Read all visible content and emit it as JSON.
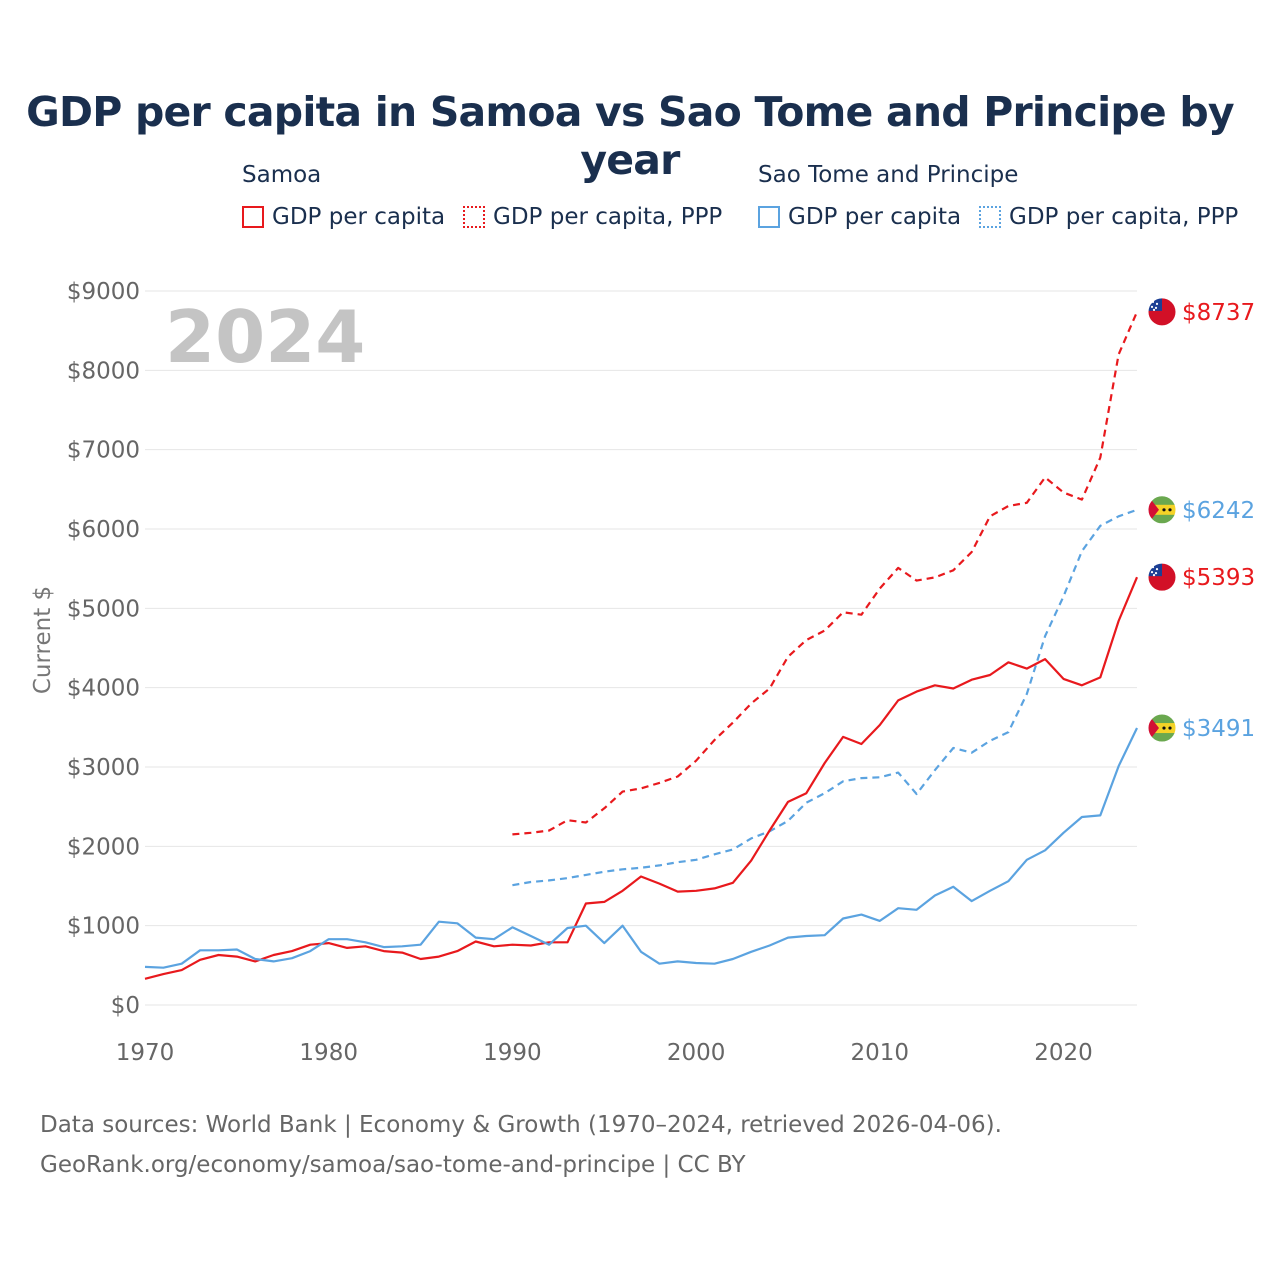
{
  "title": "GDP per capita in Samoa vs Sao Tome and Principe by year",
  "year_watermark": "2024",
  "legend": {
    "groups": [
      {
        "country": "Samoa",
        "color": "#e8191d",
        "items": [
          {
            "label": "GDP per capita",
            "style": "solid"
          },
          {
            "label": "GDP per capita, PPP",
            "style": "dotted"
          }
        ]
      },
      {
        "country": "Sao Tome and Principe",
        "color": "#5ba3e0",
        "items": [
          {
            "label": "GDP per capita",
            "style": "solid"
          },
          {
            "label": "GDP per capita, PPP",
            "style": "dotted"
          }
        ]
      }
    ]
  },
  "footer": {
    "line1": "Data sources: World Bank | Economy & Growth (1970–2024, retrieved 2026-04-06).",
    "line2": "GeoRank.org/economy/samoa/sao-tome-and-principe | CC BY"
  },
  "chart_data": {
    "type": "line",
    "ylabel": "Current $",
    "xlabel": "",
    "xlim": [
      1970,
      2024
    ],
    "ylim": [
      0,
      9000
    ],
    "xticks": [
      1970,
      1980,
      1990,
      2000,
      2010,
      2020
    ],
    "yticks": [
      0,
      1000,
      2000,
      3000,
      4000,
      5000,
      6000,
      7000,
      8000,
      9000
    ],
    "ytick_labels": [
      "$0",
      "$1000",
      "$2000",
      "$3000",
      "$4000",
      "$5000",
      "$6000",
      "$7000",
      "$8000",
      "$9000"
    ],
    "grid": true,
    "series": [
      {
        "name": "Samoa GDP per capita, PPP",
        "country": "Samoa",
        "color": "#e8191d",
        "dashed": true,
        "end_label": "$8737",
        "flag": "samoa",
        "x": [
          1990,
          1991,
          1992,
          1993,
          1994,
          1995,
          1996,
          1997,
          1998,
          1999,
          2000,
          2001,
          2002,
          2003,
          2004,
          2005,
          2006,
          2007,
          2008,
          2009,
          2010,
          2011,
          2012,
          2013,
          2014,
          2015,
          2016,
          2017,
          2018,
          2019,
          2020,
          2021,
          2022,
          2023,
          2024
        ],
        "values": [
          2150,
          2170,
          2200,
          2330,
          2300,
          2480,
          2690,
          2730,
          2800,
          2880,
          3080,
          3340,
          3560,
          3800,
          3990,
          4390,
          4600,
          4720,
          4950,
          4920,
          5250,
          5510,
          5350,
          5390,
          5480,
          5710,
          6160,
          6290,
          6330,
          6650,
          6460,
          6370,
          6900,
          8200,
          8737
        ]
      },
      {
        "name": "Sao Tome and Principe GDP per capita, PPP",
        "country": "Sao Tome and Principe",
        "color": "#5ba3e0",
        "dashed": true,
        "end_label": "$6242",
        "flag": "stp",
        "x": [
          1990,
          1991,
          1992,
          1993,
          1994,
          1995,
          1996,
          1997,
          1998,
          1999,
          2000,
          2001,
          2002,
          2003,
          2004,
          2005,
          2006,
          2007,
          2008,
          2009,
          2010,
          2011,
          2012,
          2013,
          2014,
          2015,
          2016,
          2017,
          2018,
          2019,
          2020,
          2021,
          2022,
          2023,
          2024
        ],
        "values": [
          1510,
          1550,
          1570,
          1600,
          1640,
          1680,
          1710,
          1730,
          1760,
          1800,
          1830,
          1900,
          1960,
          2100,
          2190,
          2320,
          2550,
          2670,
          2820,
          2860,
          2870,
          2930,
          2660,
          2960,
          3240,
          3180,
          3330,
          3440,
          3920,
          4650,
          5150,
          5720,
          6040,
          6160,
          6242
        ]
      },
      {
        "name": "Samoa GDP per capita",
        "country": "Samoa",
        "color": "#e8191d",
        "dashed": false,
        "end_label": "$5393",
        "flag": "samoa",
        "x": [
          1970,
          1971,
          1972,
          1973,
          1974,
          1975,
          1976,
          1977,
          1978,
          1979,
          1980,
          1981,
          1982,
          1983,
          1984,
          1985,
          1986,
          1987,
          1988,
          1989,
          1990,
          1991,
          1992,
          1993,
          1994,
          1995,
          1996,
          1997,
          1998,
          1999,
          2000,
          2001,
          2002,
          2003,
          2004,
          2005,
          2006,
          2007,
          2008,
          2009,
          2010,
          2011,
          2012,
          2013,
          2014,
          2015,
          2016,
          2017,
          2018,
          2019,
          2020,
          2021,
          2022,
          2023,
          2024
        ],
        "values": [
          330,
          390,
          440,
          570,
          630,
          610,
          550,
          630,
          680,
          760,
          780,
          720,
          740,
          680,
          660,
          580,
          610,
          680,
          800,
          740,
          760,
          750,
          790,
          790,
          1280,
          1300,
          1440,
          1620,
          1530,
          1430,
          1440,
          1470,
          1540,
          1820,
          2200,
          2560,
          2670,
          3050,
          3380,
          3290,
          3530,
          3840,
          3950,
          4030,
          3990,
          4100,
          4160,
          4320,
          4240,
          4360,
          4110,
          4030,
          4130,
          4840,
          5393
        ]
      },
      {
        "name": "Sao Tome and Principe GDP per capita",
        "country": "Sao Tome and Principe",
        "color": "#5ba3e0",
        "dashed": false,
        "end_label": "$3491",
        "flag": "stp",
        "x": [
          1970,
          1971,
          1972,
          1973,
          1974,
          1975,
          1976,
          1977,
          1978,
          1979,
          1980,
          1981,
          1982,
          1983,
          1984,
          1985,
          1986,
          1987,
          1988,
          1989,
          1990,
          1991,
          1992,
          1993,
          1994,
          1995,
          1996,
          1997,
          1998,
          1999,
          2000,
          2001,
          2002,
          2003,
          2004,
          2005,
          2006,
          2007,
          2008,
          2009,
          2010,
          2011,
          2012,
          2013,
          2014,
          2015,
          2016,
          2017,
          2018,
          2019,
          2020,
          2021,
          2022,
          2023,
          2024
        ],
        "values": [
          480,
          470,
          520,
          690,
          690,
          700,
          580,
          550,
          590,
          680,
          830,
          830,
          790,
          730,
          740,
          760,
          1050,
          1030,
          850,
          830,
          980,
          870,
          760,
          970,
          1000,
          780,
          1000,
          670,
          520,
          550,
          530,
          520,
          580,
          670,
          750,
          850,
          870,
          880,
          1090,
          1140,
          1060,
          1220,
          1200,
          1380,
          1490,
          1310,
          1440,
          1560,
          1830,
          1950,
          2170,
          2370,
          2390,
          3010,
          3491
        ]
      }
    ]
  }
}
